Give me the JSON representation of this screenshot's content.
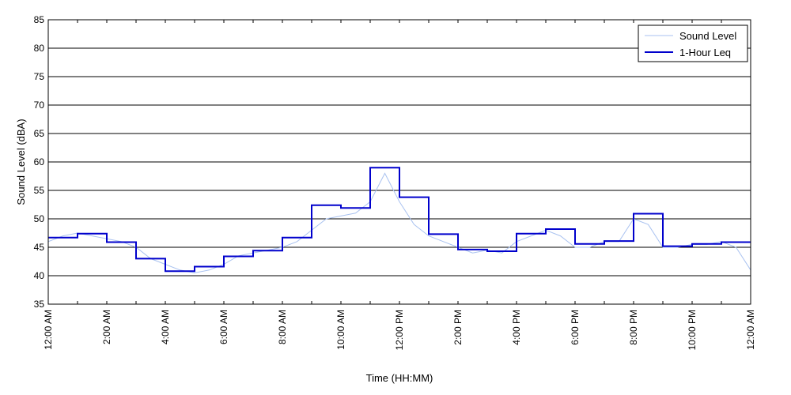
{
  "chart_data": {
    "type": "line",
    "xlabel": "Time (HH:MM)",
    "ylabel": "Sound Level (dBA)",
    "ylim": [
      35,
      85
    ],
    "yticks": [
      35,
      40,
      45,
      50,
      55,
      60,
      65,
      70,
      75,
      80,
      85
    ],
    "xlim_hours": [
      0,
      24
    ],
    "xticks": [
      {
        "h": 0,
        "label": "12:00 AM"
      },
      {
        "h": 2,
        "label": "2:00 AM"
      },
      {
        "h": 4,
        "label": "4:00 AM"
      },
      {
        "h": 6,
        "label": "6:00 AM"
      },
      {
        "h": 8,
        "label": "8:00 AM"
      },
      {
        "h": 10,
        "label": "10:00 AM"
      },
      {
        "h": 12,
        "label": "12:00 PM"
      },
      {
        "h": 14,
        "label": "2:00 PM"
      },
      {
        "h": 16,
        "label": "4:00 PM"
      },
      {
        "h": 18,
        "label": "6:00 PM"
      },
      {
        "h": 20,
        "label": "8:00 PM"
      },
      {
        "h": 22,
        "label": "10:00 PM"
      },
      {
        "h": 24,
        "label": "12:00 AM"
      }
    ],
    "grid": true,
    "legend_position": "top-right",
    "series": [
      {
        "name": "Sound Level",
        "color": "#a9c2f0",
        "x_hours": [
          0,
          0.5,
          1,
          1.5,
          2,
          2.5,
          3,
          3.5,
          4,
          4.5,
          5,
          5.5,
          6,
          6.5,
          7,
          7.5,
          8,
          8.5,
          9,
          9.5,
          10,
          10.5,
          11,
          11.5,
          12,
          12.5,
          13,
          13.5,
          14,
          14.5,
          15,
          15.5,
          16,
          16.5,
          17,
          17.5,
          18,
          18.5,
          19,
          19.5,
          20,
          20.5,
          21,
          21.5,
          22,
          22.5,
          23,
          23.5,
          24
        ],
        "values": [
          46,
          47,
          47.5,
          47,
          46.5,
          46,
          45,
          43,
          42,
          41,
          40.5,
          41,
          42,
          43.5,
          44,
          44.5,
          45,
          46,
          48,
          50,
          50.5,
          51,
          53,
          58,
          53,
          49,
          47,
          46,
          45,
          44,
          44.5,
          44,
          46,
          47,
          48,
          47,
          45,
          45,
          46,
          46,
          50,
          49,
          45,
          45,
          45.5,
          45.5,
          46,
          45,
          41
        ]
      },
      {
        "name": "1-Hour Leq",
        "color": "#0000cc",
        "type": "step",
        "hour_starts": [
          0,
          1,
          2,
          3,
          4,
          5,
          6,
          7,
          8,
          9,
          10,
          11,
          12,
          13,
          14,
          15,
          16,
          17,
          18,
          19,
          20,
          21,
          22,
          23
        ],
        "values": [
          46.7,
          47.4,
          45.9,
          43.0,
          40.8,
          41.6,
          43.4,
          44.4,
          46.7,
          52.4,
          51.9,
          59.0,
          53.8,
          47.3,
          44.6,
          44.3,
          47.4,
          48.2,
          45.6,
          46.1,
          50.9,
          45.2,
          45.6,
          45.9
        ]
      }
    ]
  }
}
